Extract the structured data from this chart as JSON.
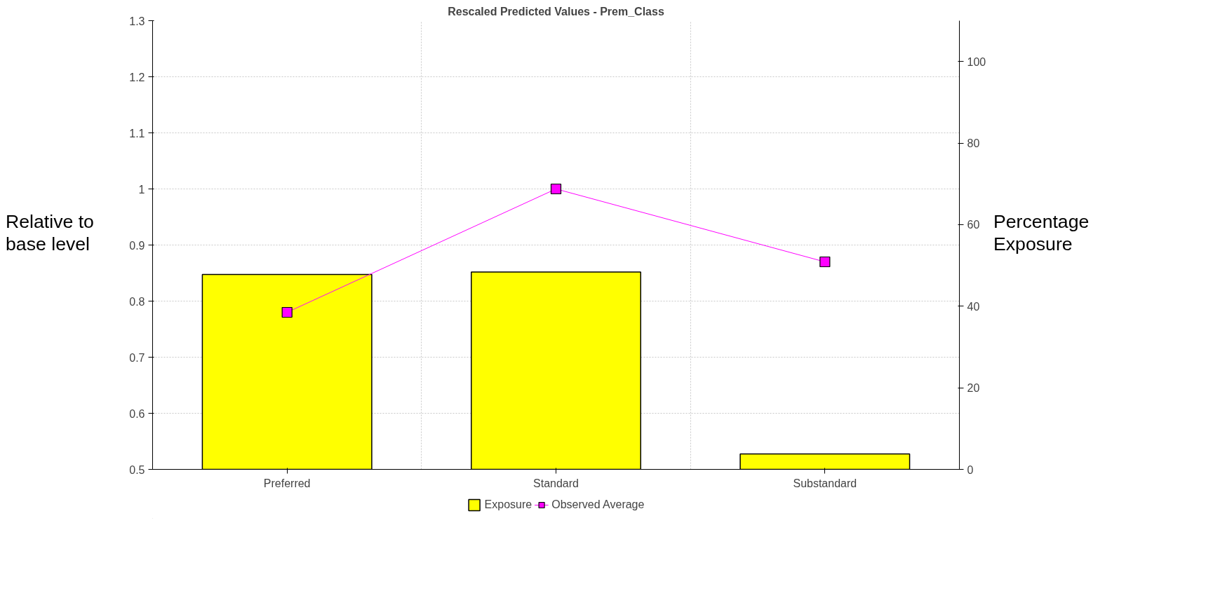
{
  "chart_data": {
    "type": "bar",
    "title": "Rescaled Predicted Values - Prem_Class",
    "categories": [
      "Preferred",
      "Standard",
      "Substandard"
    ],
    "ylabel": "Relative to base level",
    "y2label": "Percentage Exposure",
    "ylim": [
      0.5,
      1.3
    ],
    "yticks": [
      0.5,
      0.6,
      0.7,
      0.8,
      0.9,
      1,
      1.1,
      1.2,
      1.3
    ],
    "y2lim": [
      0,
      110
    ],
    "y2ticks": [
      0,
      20,
      40,
      60,
      80,
      100
    ],
    "series": [
      {
        "name": "Exposure",
        "type": "bar",
        "axis": "y2",
        "color": "#ffff00",
        "values": [
          47.8,
          48.4,
          3.8
        ]
      },
      {
        "name": "Observed Average",
        "type": "line",
        "color": "#ff00ff",
        "marker": "square",
        "values": [
          0.78,
          1.0,
          0.87
        ]
      }
    ],
    "grid": true,
    "legend": "bottom"
  }
}
